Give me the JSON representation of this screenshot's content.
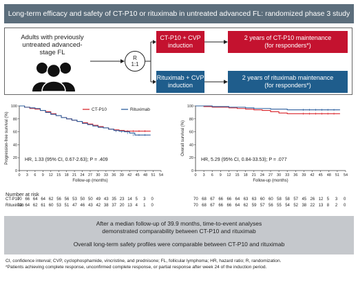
{
  "title": "Long-term efficacy and safety of CT-P10 or rituximab in untreated advanced FL: randomized phase 3 study",
  "design": {
    "population": "Adults with previously untreated advanced-stage FL",
    "randomization_top": "R",
    "randomization_bottom": "1:1",
    "arm1_induction": "CT-P10 + CVP induction",
    "arm1_maintenance": "2 years of CT-P10 maintenance (for responders*)",
    "arm2_induction": "Rituximab + CVP induction",
    "arm2_maintenance": "2 years of rituximab maintenance (for responders*)"
  },
  "colors": {
    "ctp10": "#d9252c",
    "rituximab": "#2c5f9e",
    "title_bg": "#5c6e7c",
    "summary_bg": "#c5c8cc"
  },
  "chart_data": [
    {
      "type": "line",
      "ylabel": "Progression-free survival (%)",
      "xlabel": "Follow-up (months)",
      "xticks": [
        0,
        3,
        6,
        9,
        12,
        15,
        18,
        21,
        24,
        27,
        30,
        33,
        36,
        39,
        42,
        45,
        48,
        51,
        54
      ],
      "yticks": [
        0,
        20,
        40,
        60,
        80,
        100
      ],
      "xlim": [
        0,
        54
      ],
      "ylim": [
        0,
        100
      ],
      "legend": [
        "CT-P10",
        "Rituximab"
      ],
      "series": [
        {
          "name": "CT-P10",
          "color": "#d9252c",
          "x": [
            0,
            2,
            4,
            6,
            8,
            10,
            12,
            14,
            16,
            18,
            20,
            22,
            24,
            26,
            28,
            30,
            32,
            34,
            36,
            38,
            40,
            42,
            44,
            46,
            48,
            50
          ],
          "y": [
            100,
            98,
            96,
            95,
            93,
            91,
            88,
            85,
            82,
            80,
            78,
            76,
            74,
            72,
            70,
            68,
            66,
            64,
            63,
            62,
            61,
            61,
            61,
            61,
            61,
            61
          ]
        },
        {
          "name": "Rituximab",
          "color": "#2c5f9e",
          "x": [
            0,
            2,
            4,
            6,
            8,
            10,
            12,
            14,
            16,
            18,
            20,
            22,
            24,
            26,
            28,
            30,
            32,
            34,
            36,
            38,
            40,
            42,
            44,
            46,
            48,
            50
          ],
          "y": [
            100,
            98,
            97,
            96,
            93,
            90,
            87,
            85,
            82,
            80,
            78,
            76,
            73,
            71,
            69,
            67,
            66,
            64,
            62,
            61,
            60,
            58,
            55,
            55,
            55,
            55
          ]
        }
      ],
      "annotation": "HR, 1.33 (95% CI, 0.67-2.63); P = .409",
      "risk_header": "Number at risk",
      "risk_table": [
        {
          "label": "CT-P10",
          "values": [
            "70",
            "66",
            "64",
            "64",
            "62",
            "56",
            "56",
            "53",
            "50",
            "50",
            "49",
            "43",
            "35",
            "23",
            "14",
            "5",
            "3",
            "0"
          ]
        },
        {
          "label": "Rituximab",
          "values": [
            "70",
            "64",
            "62",
            "61",
            "60",
            "53",
            "51",
            "47",
            "46",
            "43",
            "42",
            "38",
            "37",
            "20",
            "13",
            "4",
            "1",
            "0"
          ]
        }
      ]
    },
    {
      "type": "line",
      "ylabel": "Overall survival (%)",
      "xlabel": "Follow-up (months)",
      "xticks": [
        0,
        3,
        6,
        9,
        12,
        15,
        18,
        21,
        24,
        27,
        30,
        33,
        36,
        39,
        42,
        45,
        48,
        51,
        54
      ],
      "yticks": [
        0,
        20,
        40,
        60,
        80,
        100
      ],
      "xlim": [
        0,
        54
      ],
      "ylim": [
        0,
        100
      ],
      "series": [
        {
          "name": "CT-P10",
          "color": "#d9252c",
          "x": [
            0,
            3,
            6,
            9,
            12,
            15,
            18,
            21,
            24,
            27,
            30,
            33,
            36,
            39,
            42,
            45,
            48,
            51,
            52
          ],
          "y": [
            100,
            99,
            98,
            98,
            97,
            96,
            95,
            94,
            93,
            91,
            89,
            88,
            88,
            88,
            88,
            88,
            88,
            88,
            88
          ]
        },
        {
          "name": "Rituximab",
          "color": "#2c5f9e",
          "x": [
            0,
            3,
            6,
            9,
            12,
            15,
            18,
            21,
            24,
            27,
            30,
            33,
            36,
            39,
            42,
            45,
            48,
            51,
            52
          ],
          "y": [
            100,
            100,
            99,
            99,
            98,
            98,
            97,
            96,
            96,
            95,
            95,
            94,
            94,
            94,
            94,
            94,
            94,
            94,
            94
          ]
        }
      ],
      "annotation": "HR, 5.29 (95% CI, 0.84-33.53); P = .077",
      "risk_table": [
        {
          "label": "CT-P10",
          "values": [
            "70",
            "68",
            "67",
            "66",
            "66",
            "64",
            "63",
            "63",
            "60",
            "60",
            "58",
            "58",
            "57",
            "45",
            "26",
            "12",
            "5",
            "3",
            "0"
          ]
        },
        {
          "label": "Rituximab",
          "values": [
            "70",
            "68",
            "67",
            "66",
            "66",
            "64",
            "62",
            "59",
            "57",
            "56",
            "55",
            "54",
            "52",
            "38",
            "22",
            "13",
            "8",
            "2",
            "0"
          ]
        }
      ]
    }
  ],
  "summary": {
    "line1": "After a median follow-up of 39.9 months, time-to-event analyses",
    "line2": "demonstrated comparability between CT-P10 and rituximab",
    "line3": "Overall long-term safety profiles were comparable between CT-P10 and rituximab"
  },
  "footnote": {
    "line1": "CI, confidence interval; CVP, cyclophosphamide, vincristine, and prednisone; FL, follicular lymphoma; HR, hazard ratio; R, randomization.",
    "line2": "*Patients achieving complete response, unconfirmed complete response, or partial response after week 24 of the induction period."
  }
}
